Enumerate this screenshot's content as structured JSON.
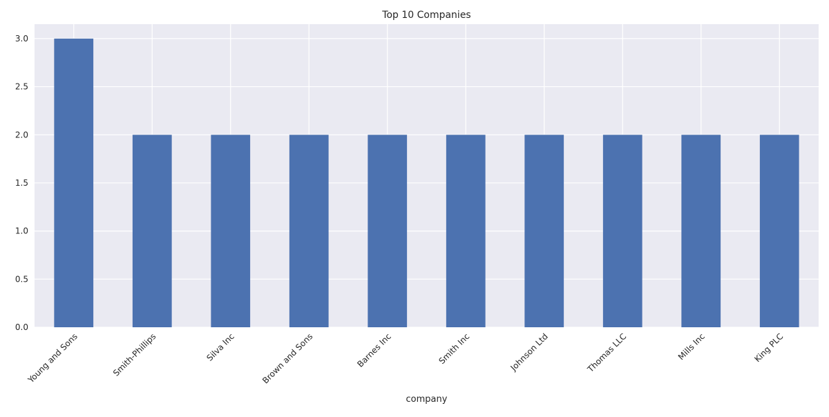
{
  "chart_data": {
    "type": "bar",
    "title": "Top 10 Companies",
    "xlabel": "company",
    "ylabel": "",
    "categories": [
      "Young and Sons",
      "Smith-Phillips",
      "Silva Inc",
      "Brown and Sons",
      "Barnes Inc",
      "Smith Inc",
      "Johnson Ltd",
      "Thomas LLC",
      "Mills Inc",
      "King PLC"
    ],
    "values": [
      3,
      2,
      2,
      2,
      2,
      2,
      2,
      2,
      2,
      2
    ],
    "ylim": [
      0,
      3.15
    ],
    "yticks": [
      "0.0",
      "0.5",
      "1.0",
      "1.5",
      "2.0",
      "2.5",
      "3.0"
    ],
    "grid": true,
    "colors": {
      "bar": "#4c72b0",
      "plot_background": "#eaeaf2",
      "grid": "#ffffff"
    }
  }
}
